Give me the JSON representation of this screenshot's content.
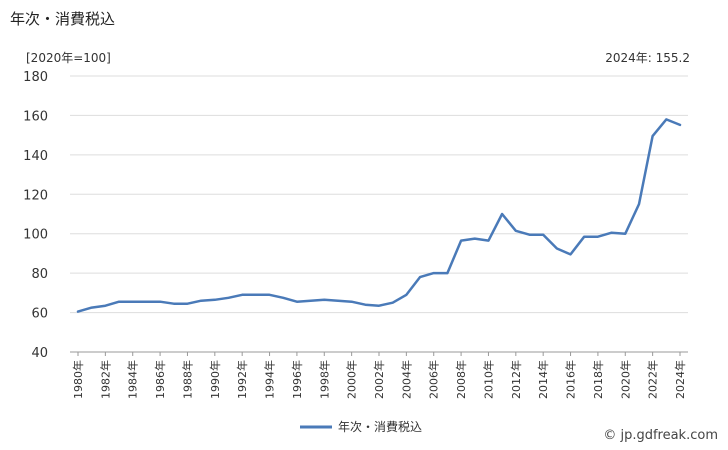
{
  "title": "年次・消費税込",
  "unit_label": "[2020年=100]",
  "latest_label": "2024年: 155.2",
  "credit": "© jp.gdfreak.com",
  "colors": {
    "line": "#4a7ab8",
    "grid": "#dddddd",
    "axis": "#999999"
  },
  "chart_data": {
    "type": "line",
    "title": "年次・消費税込",
    "ylim": [
      40,
      180
    ],
    "yticks": [
      40,
      60,
      80,
      100,
      120,
      140,
      160,
      180
    ],
    "xtick_labels": [
      "1980年",
      "1982年",
      "1984年",
      "1986年",
      "1988年",
      "1990年",
      "1992年",
      "1994年",
      "1996年",
      "1998年",
      "2000年",
      "2002年",
      "2004年",
      "2006年",
      "2008年",
      "2010年",
      "2012年",
      "2014年",
      "2016年",
      "2018年",
      "2020年",
      "2022年",
      "2024年"
    ],
    "x": [
      1980,
      1981,
      1982,
      1983,
      1984,
      1985,
      1986,
      1987,
      1988,
      1989,
      1990,
      1991,
      1992,
      1993,
      1994,
      1995,
      1996,
      1997,
      1998,
      1999,
      2000,
      2001,
      2002,
      2003,
      2004,
      2005,
      2006,
      2007,
      2008,
      2009,
      2010,
      2011,
      2012,
      2013,
      2014,
      2015,
      2016,
      2017,
      2018,
      2019,
      2020,
      2021,
      2022,
      2023,
      2024
    ],
    "series": [
      {
        "name": "年次・消費税込",
        "values": [
          60.5,
          62.5,
          63.5,
          65.5,
          65.5,
          65.5,
          65.5,
          64.5,
          64.5,
          66,
          66.5,
          67.5,
          69,
          69,
          69,
          67.5,
          65.5,
          66,
          66.5,
          66,
          65.5,
          64,
          63.5,
          65,
          69,
          78,
          80,
          80,
          96.5,
          97.5,
          96.5,
          110,
          101.5,
          99.5,
          99.5,
          92.5,
          89.5,
          98.5,
          98.5,
          100.5,
          100,
          115,
          149.5,
          158,
          155.2
        ]
      }
    ],
    "legend_position": "bottom",
    "grid": true
  }
}
